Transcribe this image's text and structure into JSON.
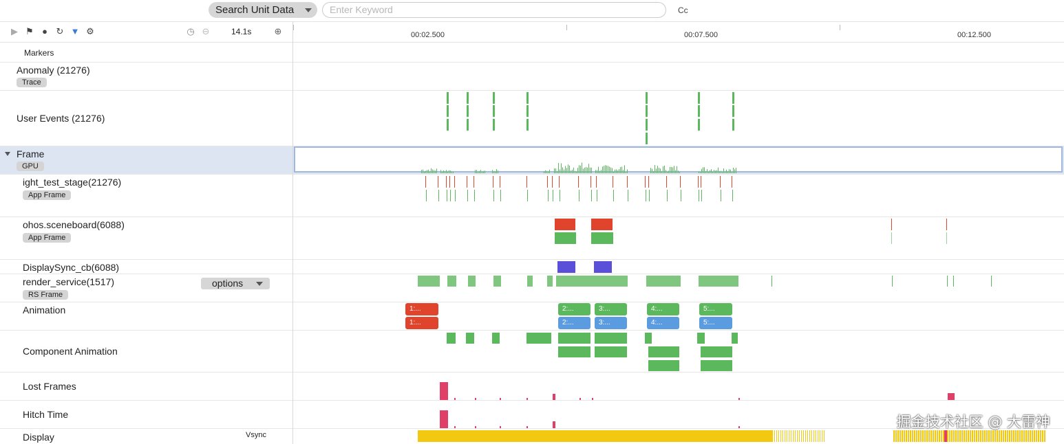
{
  "search": {
    "scope_label": "Search Unit Data",
    "placeholder": "Enter Keyword",
    "case_toggle": "Cc"
  },
  "toolbar": {
    "icons": [
      "play-icon",
      "flag-icon",
      "globe-icon",
      "refresh-select-icon",
      "filter-icon",
      "gear-icon"
    ],
    "zoom_value": "14.1s"
  },
  "ruler": {
    "labels": [
      "00:02.500",
      "00:07.500",
      "00:12.500"
    ]
  },
  "rows": {
    "markers": "Markers",
    "anomaly": {
      "label": "Anomaly (21276)",
      "chip": "Trace"
    },
    "user_events": {
      "label": "User Events (21276)"
    },
    "frame": {
      "label": "Frame",
      "chip": "GPU"
    },
    "light_test": {
      "label": "ight_test_stage(21276)",
      "chip": "App Frame"
    },
    "sceneboard": {
      "label": "ohos.sceneboard(6088)",
      "chip": "App Frame"
    },
    "displaysync": {
      "label": "DisplaySync_cb(6088)"
    },
    "render_service": {
      "label": "render_service(1517)",
      "chip": "RS Frame",
      "options": "options"
    },
    "animation": {
      "label": "Animation"
    },
    "component_animation": {
      "label": "Component Animation"
    },
    "lost_frames": {
      "label": "Lost Frames"
    },
    "hitch_time": {
      "label": "Hitch Time"
    },
    "display": {
      "label": "Display",
      "sublabel": "Vsync"
    }
  },
  "animations": {
    "a1": "1:...",
    "a1b": "1:...",
    "a2": "2:...",
    "a2b": "2:...",
    "a3": "3:...",
    "a3b": "3:...",
    "a4": "4:...",
    "a4b": "4:...",
    "a5": "5:...",
    "a5b": "5:..."
  },
  "colors": {
    "green": "#5cb85c",
    "red": "#e0442c",
    "blue": "#5b9be0",
    "purple": "#5a4fd8",
    "pink": "#e04068",
    "yellow": "#f2c811"
  },
  "watermark": "掘金技术社区 @ 大雷神"
}
